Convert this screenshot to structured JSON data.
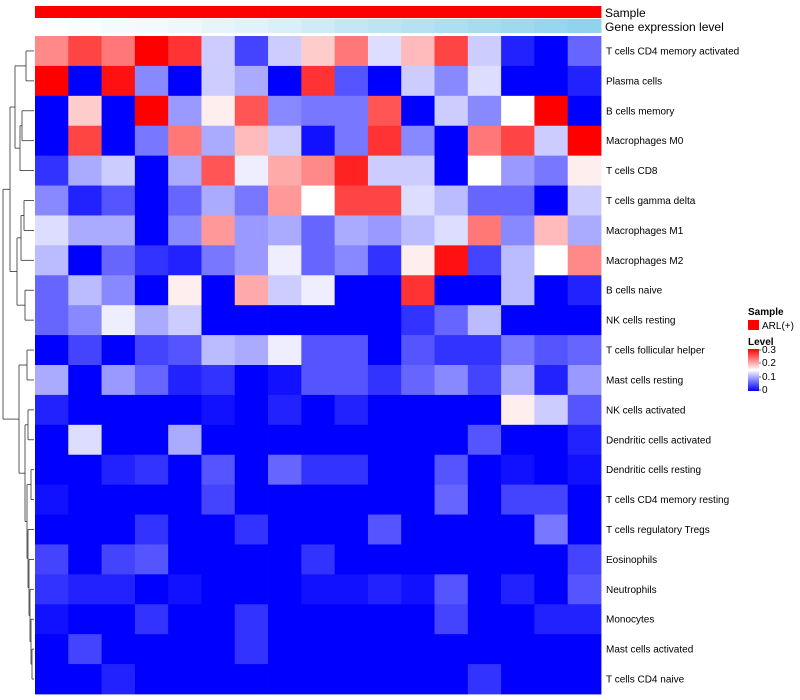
{
  "chart_data": {
    "type": "heatmap",
    "title": "",
    "rows": [
      "T cells CD4 memory activated",
      "Plasma cells",
      "B cells memory",
      "Macrophages M0",
      "T cells CD8",
      "T cells gamma delta",
      "Macrophages M1",
      "Macrophages M2",
      "B cells naive",
      "NK cells resting",
      "T cells follicular helper",
      "Mast cells resting",
      "NK cells activated",
      "Dendritic cells activated",
      "Dendritic cells resting",
      "T cells CD4 memory resting",
      "T cells regulatory  Tregs",
      "Eosinophils",
      "Neutrophils",
      "Monocytes",
      "Mast cells activated",
      "T cells CD4 naive"
    ],
    "n_columns": 17,
    "values": [
      [
        0.22,
        0.26,
        0.23,
        0.3,
        0.27,
        0.12,
        0.04,
        0.12,
        0.18,
        0.23,
        0.13,
        0.19,
        0.26,
        0.12,
        0.02,
        0.0,
        0.06
      ],
      [
        0.3,
        0.0,
        0.29,
        0.08,
        0.0,
        0.12,
        0.1,
        0.0,
        0.27,
        0.05,
        0.0,
        0.12,
        0.08,
        0.13,
        0.0,
        0.0,
        0.02
      ],
      [
        0.0,
        0.18,
        0.0,
        0.3,
        0.09,
        0.16,
        0.25,
        0.08,
        0.07,
        0.07,
        0.25,
        0.0,
        0.12,
        0.08,
        0.15,
        0.3,
        0.0
      ],
      [
        0.0,
        0.26,
        0.0,
        0.07,
        0.23,
        0.1,
        0.19,
        0.12,
        0.01,
        0.07,
        0.27,
        0.08,
        0.0,
        0.23,
        0.26,
        0.12,
        0.3
      ],
      [
        0.03,
        0.1,
        0.12,
        0.0,
        0.1,
        0.25,
        0.14,
        0.2,
        0.22,
        0.28,
        0.12,
        0.12,
        0.0,
        0.15,
        0.09,
        0.07,
        0.16
      ],
      [
        0.08,
        0.02,
        0.05,
        0.0,
        0.06,
        0.1,
        0.07,
        0.21,
        0.15,
        0.26,
        0.26,
        0.13,
        0.11,
        0.06,
        0.06,
        0.0,
        0.12
      ],
      [
        0.13,
        0.1,
        0.1,
        0.0,
        0.08,
        0.21,
        0.09,
        0.1,
        0.06,
        0.1,
        0.09,
        0.11,
        0.13,
        0.23,
        0.08,
        0.19,
        0.1
      ],
      [
        0.11,
        0.0,
        0.06,
        0.03,
        0.02,
        0.07,
        0.09,
        0.14,
        0.06,
        0.08,
        0.03,
        0.16,
        0.29,
        0.04,
        0.11,
        0.15,
        0.22
      ],
      [
        0.06,
        0.11,
        0.08,
        0.0,
        0.16,
        0.0,
        0.2,
        0.12,
        0.14,
        0.0,
        0.0,
        0.27,
        0.0,
        0.0,
        0.11,
        0.0,
        0.02
      ],
      [
        0.06,
        0.08,
        0.14,
        0.1,
        0.12,
        0.0,
        0.0,
        0.0,
        0.0,
        0.0,
        0.0,
        0.03,
        0.06,
        0.11,
        0.0,
        0.0,
        0.0
      ],
      [
        0.0,
        0.04,
        0.0,
        0.04,
        0.05,
        0.11,
        0.1,
        0.14,
        0.05,
        0.05,
        0.0,
        0.05,
        0.03,
        0.03,
        0.07,
        0.05,
        0.06
      ],
      [
        0.1,
        0.0,
        0.09,
        0.06,
        0.02,
        0.03,
        0.0,
        0.01,
        0.05,
        0.05,
        0.03,
        0.06,
        0.08,
        0.04,
        0.1,
        0.02,
        0.09
      ],
      [
        0.02,
        0.0,
        0.0,
        0.0,
        0.0,
        0.01,
        0.0,
        0.02,
        0.0,
        0.02,
        0.0,
        0.0,
        0.0,
        0.0,
        0.16,
        0.12,
        0.05
      ],
      [
        0.0,
        0.13,
        0.0,
        0.0,
        0.1,
        0.0,
        0.0,
        0.0,
        0.0,
        0.0,
        0.0,
        0.0,
        0.0,
        0.05,
        0.0,
        0.0,
        0.02
      ],
      [
        0.0,
        0.0,
        0.02,
        0.03,
        0.0,
        0.05,
        0.0,
        0.06,
        0.03,
        0.03,
        0.0,
        0.0,
        0.05,
        0.0,
        0.01,
        0.0,
        0.01
      ],
      [
        0.01,
        0.0,
        0.0,
        0.0,
        0.0,
        0.04,
        0.0,
        0.0,
        0.0,
        0.0,
        0.0,
        0.0,
        0.06,
        0.0,
        0.04,
        0.04,
        0.0
      ],
      [
        0.0,
        0.0,
        0.0,
        0.03,
        0.0,
        0.0,
        0.03,
        0.0,
        0.0,
        0.0,
        0.05,
        0.0,
        0.0,
        0.0,
        0.0,
        0.07,
        0.0
      ],
      [
        0.04,
        0.0,
        0.04,
        0.05,
        0.0,
        0.0,
        0.0,
        0.0,
        0.03,
        0.0,
        0.0,
        0.0,
        0.0,
        0.0,
        0.0,
        0.0,
        0.04
      ],
      [
        0.03,
        0.02,
        0.02,
        0.0,
        0.01,
        0.0,
        0.0,
        0.0,
        0.01,
        0.01,
        0.02,
        0.01,
        0.05,
        0.0,
        0.02,
        0.0,
        0.05
      ],
      [
        0.01,
        0.0,
        0.0,
        0.03,
        0.0,
        0.0,
        0.03,
        0.0,
        0.0,
        0.0,
        0.0,
        0.0,
        0.04,
        0.0,
        0.0,
        0.02,
        0.02
      ],
      [
        0.0,
        0.04,
        0.0,
        0.0,
        0.0,
        0.0,
        0.03,
        0.0,
        0.0,
        0.0,
        0.0,
        0.0,
        0.0,
        0.0,
        0.0,
        0.0,
        0.0
      ],
      [
        0.0,
        0.0,
        0.02,
        0.0,
        0.0,
        0.0,
        0.0,
        0.0,
        0.0,
        0.0,
        0.0,
        0.0,
        0.0,
        0.03,
        0.0,
        0.0,
        0.0
      ]
    ],
    "color_scale": {
      "min": 0,
      "mid": 0.15,
      "max": 0.3,
      "low_color": "#0000ff",
      "mid_color": "#ffffff",
      "high_color": "#ff0000"
    },
    "column_annotations": [
      {
        "name": "Sample",
        "values": [
          "ARL(+)",
          "ARL(+)",
          "ARL(+)",
          "ARL(+)",
          "ARL(+)",
          "ARL(+)",
          "ARL(+)",
          "ARL(+)",
          "ARL(+)",
          "ARL(+)",
          "ARL(+)",
          "ARL(+)",
          "ARL(+)",
          "ARL(+)",
          "ARL(+)",
          "ARL(+)",
          "ARL(+)"
        ],
        "colors": {
          "ARL(+)": "#ff0000"
        }
      },
      {
        "name": "Gene expression level",
        "values": [
          0.02,
          0.05,
          0.08,
          0.11,
          0.14,
          0.2,
          0.26,
          0.32,
          0.4,
          0.48,
          0.55,
          0.62,
          0.68,
          0.74,
          0.8,
          0.86,
          0.92
        ],
        "low_color": "#ffffff",
        "high_color": "#87ceeb"
      }
    ],
    "legends": {
      "sample": {
        "title": "Sample",
        "label": "ARL(+)",
        "color": "#ff0000"
      },
      "level": {
        "title": "Level",
        "ticks": [
          "0.3",
          "0.2",
          "0.1",
          "0"
        ]
      }
    },
    "dendrogram": {
      "side": "left",
      "method": "hierarchical"
    }
  }
}
